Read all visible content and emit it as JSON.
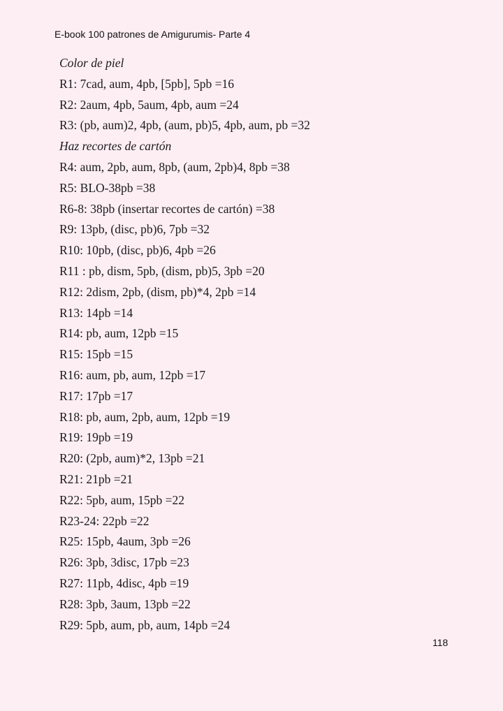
{
  "header": "E-book 100 patrones de Amigurumis- Parte 4",
  "lines": [
    {
      "text": "Color de piel",
      "italic": true
    },
    {
      "text": "R1: 7cad, aum, 4pb, [5pb], 5pb =16"
    },
    {
      "text": "R2: 2aum, 4pb, 5aum, 4pb, aum =24"
    },
    {
      "text": "R3: (pb, aum)2, 4pb, (aum, pb)5, 4pb, aum, pb =32"
    },
    {
      "text": "Haz recortes de cartón",
      "italic": true
    },
    {
      "text": "R4: aum, 2pb, aum, 8pb, (aum, 2pb)4, 8pb =38"
    },
    {
      "text": "R5: BLO-38pb =38"
    },
    {
      "text": "R6-8: 38pb (insertar recortes de cartón) =38"
    },
    {
      "text": "R9: 13pb, (disc, pb)6, 7pb =32"
    },
    {
      "text": "R10: 10pb, (disc, pb)6, 4pb =26"
    },
    {
      "text": "R11 : pb, dism, 5pb, (dism, pb)5, 3pb =20"
    },
    {
      "text": "R12: 2dism, 2pb, (dism, pb)*4, 2pb =14"
    },
    {
      "text": "R13: 14pb =14"
    },
    {
      "text": "R14: pb, aum, 12pb =15"
    },
    {
      "text": "R15: 15pb =15"
    },
    {
      "text": "R16: aum, pb, aum, 12pb =17"
    },
    {
      "text": "R17: 17pb =17"
    },
    {
      "text": "R18: pb, aum, 2pb, aum, 12pb =19"
    },
    {
      "text": "R19: 19pb =19"
    },
    {
      "text": "R20: (2pb, aum)*2, 13pb =21"
    },
    {
      "text": "R21: 21pb =21"
    },
    {
      "text": "R22: 5pb, aum, 15pb =22"
    },
    {
      "text": "R23-24: 22pb =22"
    },
    {
      "text": "R25: 15pb, 4aum, 3pb =26"
    },
    {
      "text": "R26: 3pb, 3disc, 17pb =23"
    },
    {
      "text": "R27: 11pb, 4disc, 4pb =19"
    },
    {
      "text": "R28: 3pb, 3aum, 13pb =22"
    },
    {
      "text": "R29: 5pb, aum, pb, aum, 14pb =24"
    }
  ],
  "page_number": "118",
  "colors": {
    "background": "#fdeef4",
    "text": "#1a1a1a"
  }
}
